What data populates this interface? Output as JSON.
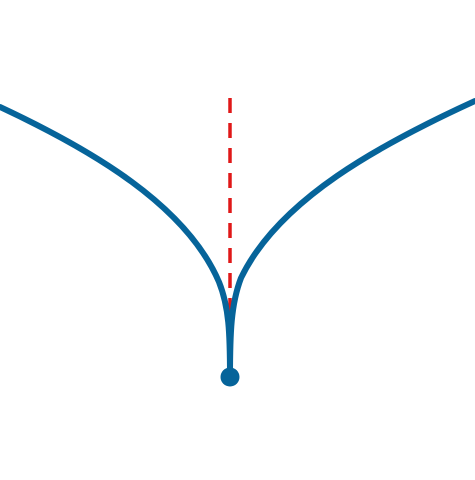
{
  "diagram": {
    "type": "cusp-curve",
    "colors": {
      "background": "#ffffff",
      "curve": "#06649A",
      "point": "#06649A",
      "axis": "#E01818"
    },
    "elements": {
      "left_branch": "curve",
      "right_branch": "curve",
      "cusp_point": "point",
      "symmetry_axis": "dashed-line"
    }
  }
}
